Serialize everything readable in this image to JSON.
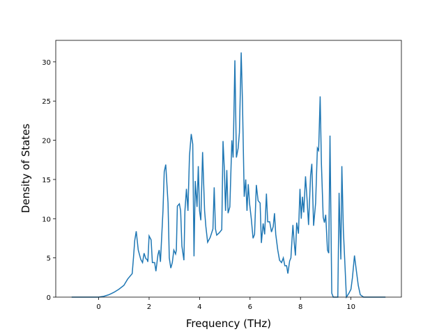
{
  "chart_data": {
    "type": "line",
    "x_label": "Frequency (THz)",
    "y_label": "Density of States",
    "xlim": [
      -1.7,
      12.0
    ],
    "ylim": [
      0,
      32.74
    ],
    "xticks": [
      0,
      2,
      4,
      6,
      8,
      10
    ],
    "yticks": [
      0,
      5,
      10,
      15,
      20,
      25,
      30
    ],
    "x": [
      -1.07,
      0,
      0.2,
      0.4,
      0.6,
      0.8,
      1.0,
      1.15,
      1.33,
      1.38,
      1.43,
      1.49,
      1.57,
      1.67,
      1.74,
      1.8,
      1.87,
      1.92,
      1.95,
      2.0,
      2.08,
      2.13,
      2.22,
      2.27,
      2.35,
      2.4,
      2.45,
      2.55,
      2.6,
      2.66,
      2.75,
      2.8,
      2.86,
      2.92,
      2.98,
      3.05,
      3.08,
      3.12,
      3.2,
      3.25,
      3.3,
      3.38,
      3.42,
      3.48,
      3.54,
      3.6,
      3.67,
      3.73,
      3.78,
      3.83,
      3.9,
      3.95,
      4.0,
      4.05,
      4.12,
      4.2,
      4.25,
      4.32,
      4.42,
      4.53,
      4.58,
      4.63,
      4.68,
      4.78,
      4.88,
      4.93,
      4.98,
      5.03,
      5.08,
      5.13,
      5.2,
      5.28,
      5.33,
      5.4,
      5.46,
      5.53,
      5.58,
      5.65,
      5.7,
      5.77,
      5.83,
      5.88,
      5.93,
      5.98,
      6.05,
      6.12,
      6.18,
      6.25,
      6.32,
      6.4,
      6.45,
      6.52,
      6.58,
      6.65,
      6.7,
      6.78,
      6.85,
      6.92,
      6.97,
      7.02,
      7.1,
      7.17,
      7.25,
      7.32,
      7.38,
      7.45,
      7.5,
      7.57,
      7.62,
      7.7,
      7.75,
      7.8,
      7.85,
      7.92,
      7.98,
      8.03,
      8.08,
      8.13,
      8.2,
      8.26,
      8.32,
      8.4,
      8.45,
      8.52,
      8.6,
      8.67,
      8.72,
      8.78,
      8.83,
      8.9,
      8.95,
      9.0,
      9.07,
      9.12,
      9.17,
      9.24,
      9.3,
      9.48,
      9.53,
      9.6,
      9.64,
      9.7,
      9.75,
      9.82,
      9.92,
      10.0,
      10.06,
      10.14,
      10.21,
      10.29,
      10.37,
      10.5,
      11.37
    ],
    "series": [
      {
        "color": "#1f77b4",
        "values": [
          0,
          0,
          0.1,
          0.3,
          0.6,
          1.0,
          1.5,
          2.3,
          3.0,
          5,
          7.2,
          8.4,
          6,
          4.8,
          4.4,
          5.6,
          4.9,
          4.8,
          4.5,
          7.8,
          7.3,
          4.4,
          4.4,
          3.3,
          5.4,
          6.0,
          4.5,
          11,
          16,
          16.9,
          12,
          5,
          3.7,
          4.4,
          6.0,
          5.5,
          6,
          11.6,
          11.9,
          11,
          6.5,
          4.7,
          11,
          13.8,
          11,
          18,
          20.8,
          19.5,
          5.2,
          14.8,
          11.5,
          16.7,
          11,
          9.8,
          18.5,
          11,
          9,
          7.0,
          7.6,
          8.7,
          14,
          8.7,
          7.9,
          8.2,
          8.6,
          19.9,
          16.5,
          11,
          16.2,
          10.7,
          11.5,
          20,
          17.8,
          30.2,
          17.8,
          19,
          21,
          31.2,
          25,
          12.8,
          15,
          11,
          14.4,
          12,
          10,
          7.5,
          8,
          14.3,
          12.3,
          12,
          6.9,
          9.4,
          8,
          13.2,
          9.6,
          9.6,
          8.3,
          9,
          10.7,
          8,
          6,
          4.7,
          4.4,
          5,
          4,
          4,
          3,
          4.6,
          5,
          9.2,
          7,
          5.3,
          9.5,
          8.1,
          13.8,
          10,
          12.8,
          10.8,
          15.4,
          12.5,
          9.2,
          15.5,
          17,
          9.1,
          12,
          19,
          18.7,
          25.6,
          17,
          10.2,
          9.5,
          10.5,
          6,
          5.6,
          20.6,
          0.5,
          0,
          0,
          13.3,
          4.8,
          16.7,
          8.5,
          5,
          0,
          0.5,
          1,
          2.5,
          5.3,
          3.5,
          1.5,
          0.3,
          0,
          0
        ]
      }
    ]
  }
}
